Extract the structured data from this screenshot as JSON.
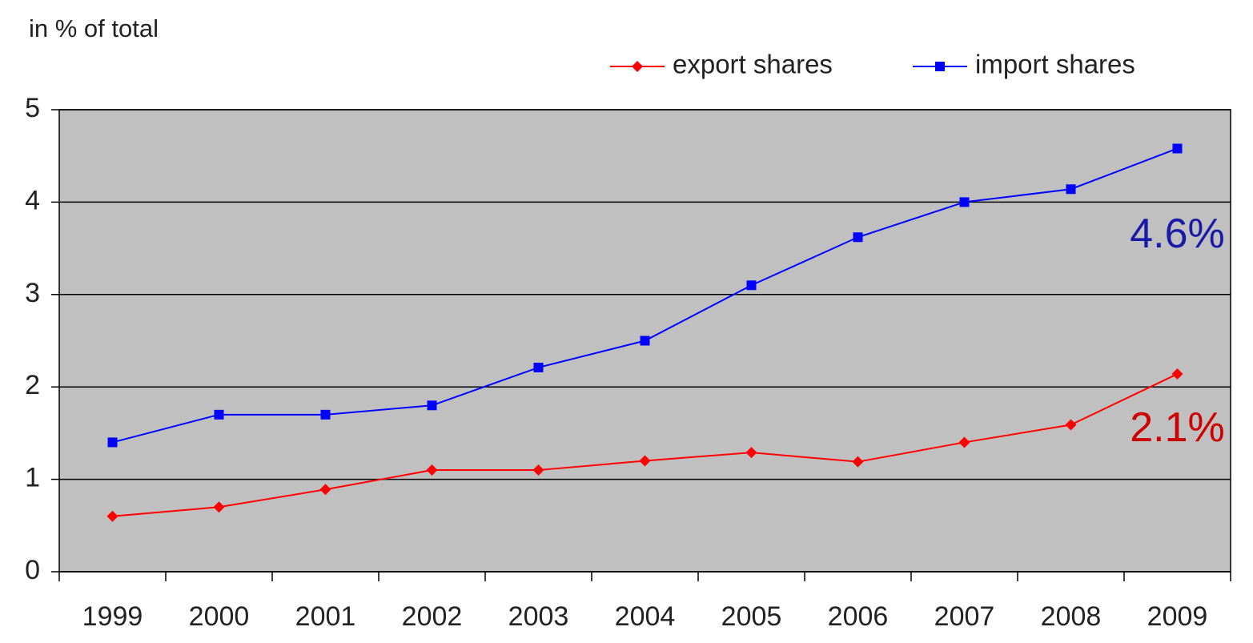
{
  "chart_data": {
    "type": "line",
    "y_label": "in %  of total",
    "categories": [
      "1999",
      "2000",
      "2001",
      "2002",
      "2003",
      "2004",
      "2005",
      "2006",
      "2007",
      "2008",
      "2009"
    ],
    "series": [
      {
        "name": "export shares",
        "color": "#ff0000",
        "marker": "diamond",
        "label_color": "#cc0000",
        "values": [
          0.6,
          0.7,
          0.89,
          1.1,
          1.1,
          1.2,
          1.29,
          1.19,
          1.4,
          1.59,
          2.14
        ],
        "value_labels": [
          null,
          null,
          null,
          null,
          null,
          null,
          null,
          null,
          null,
          null,
          "2.1%"
        ]
      },
      {
        "name": "import shares",
        "color": "#0000ff",
        "marker": "square",
        "label_color": "#1a1aa8",
        "values": [
          1.4,
          1.7,
          1.7,
          1.8,
          2.21,
          2.5,
          3.1,
          3.62,
          4.0,
          4.14,
          4.58
        ],
        "value_labels": [
          null,
          null,
          null,
          null,
          null,
          null,
          null,
          null,
          null,
          null,
          "4.6%"
        ]
      }
    ],
    "ylim": [
      0,
      5
    ],
    "yticks": [
      0,
      1,
      2,
      3,
      4,
      5
    ],
    "grid": true,
    "legend": "top-right"
  }
}
